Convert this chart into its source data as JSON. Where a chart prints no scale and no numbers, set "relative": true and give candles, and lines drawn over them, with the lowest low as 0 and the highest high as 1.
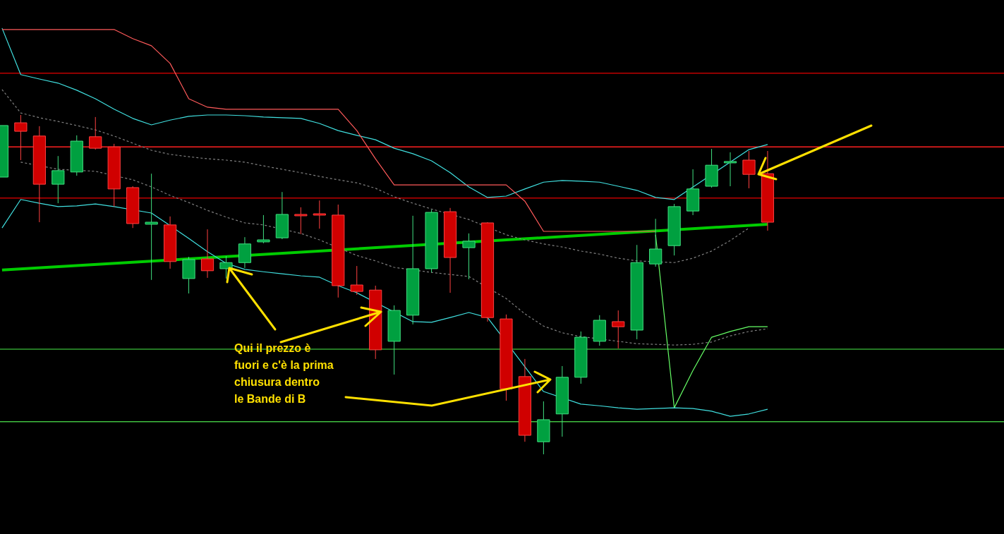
{
  "chart_data": {
    "type": "candlestick",
    "relative": true,
    "categories": [
      null,
      null,
      null,
      null,
      null,
      null,
      null,
      null,
      null,
      null,
      null,
      null,
      null,
      null,
      null,
      null,
      null,
      null,
      null,
      null,
      null,
      null,
      null,
      null,
      null,
      null,
      null,
      null,
      null,
      null,
      null,
      null,
      null,
      null,
      null,
      null,
      null,
      null,
      null,
      null,
      null,
      null
    ],
    "ohlc": [
      [
        0.817,
        0.969,
        0.817,
        0.969
      ],
      [
        0.977,
        1.0,
        0.867,
        0.952
      ],
      [
        0.938,
        0.967,
        0.684,
        0.796
      ],
      [
        0.796,
        0.879,
        0.74,
        0.836
      ],
      [
        0.832,
        0.94,
        0.821,
        0.923
      ],
      [
        0.936,
        0.994,
        0.898,
        0.902
      ],
      [
        0.906,
        0.915,
        0.73,
        0.782
      ],
      [
        0.786,
        0.79,
        0.667,
        0.68
      ],
      [
        0.678,
        0.827,
        0.514,
        0.684
      ],
      [
        0.676,
        0.701,
        0.547,
        0.568
      ],
      [
        0.518,
        0.582,
        0.474,
        0.574
      ],
      [
        0.576,
        0.663,
        0.52,
        0.541
      ],
      [
        0.547,
        0.584,
        0.518,
        0.565
      ],
      [
        0.565,
        0.64,
        0.549,
        0.62
      ],
      [
        0.626,
        0.705,
        0.622,
        0.632
      ],
      [
        0.638,
        0.773,
        0.634,
        0.707
      ],
      [
        0.707,
        0.728,
        0.649,
        0.705
      ],
      [
        0.709,
        0.748,
        0.665,
        0.705
      ],
      [
        0.705,
        0.736,
        0.462,
        0.497
      ],
      [
        0.499,
        0.555,
        0.47,
        0.48
      ],
      [
        0.484,
        0.497,
        0.281,
        0.308
      ],
      [
        0.333,
        0.439,
        0.235,
        0.424
      ],
      [
        0.41,
        0.703,
        0.383,
        0.547
      ],
      [
        0.547,
        0.721,
        0.536,
        0.713
      ],
      [
        0.715,
        0.726,
        0.476,
        0.58
      ],
      [
        0.609,
        0.651,
        0.516,
        0.628
      ],
      [
        0.682,
        0.684,
        0.391,
        0.403
      ],
      [
        0.399,
        0.412,
        0.158,
        0.193
      ],
      [
        0.229,
        0.281,
        0.037,
        0.056
      ],
      [
        0.037,
        0.156,
        0.0,
        0.102
      ],
      [
        0.119,
        0.26,
        0.052,
        0.227
      ],
      [
        0.227,
        0.362,
        0.208,
        0.345
      ],
      [
        0.333,
        0.41,
        0.32,
        0.395
      ],
      [
        0.391,
        0.424,
        0.312,
        0.376
      ],
      [
        0.366,
        0.617,
        0.339,
        0.565
      ],
      [
        0.561,
        0.694,
        0.553,
        0.605
      ],
      [
        0.615,
        0.738,
        0.586,
        0.73
      ],
      [
        0.717,
        0.84,
        0.705,
        0.782
      ],
      [
        0.79,
        0.9,
        0.786,
        0.852
      ],
      [
        0.859,
        0.89,
        0.79,
        0.863
      ],
      [
        0.867,
        0.894,
        0.784,
        0.825
      ],
      [
        0.827,
        0.894,
        0.659,
        0.684
      ]
    ],
    "series": [
      {
        "type": "line",
        "color": "#ff5a5a",
        "values": [
          1.252,
          1.252,
          1.252,
          1.252,
          1.252,
          1.252,
          1.252,
          1.225,
          1.204,
          1.152,
          1.048,
          1.023,
          1.017,
          1.017,
          1.017,
          1.017,
          1.017,
          1.017,
          1.017,
          0.954,
          0.871,
          0.794,
          0.794,
          0.794,
          0.794,
          0.794,
          0.794,
          0.794,
          0.746,
          0.657,
          0.657,
          0.657,
          0.657,
          0.657,
          0.657,
          0.657,
          null,
          null,
          null,
          null,
          null,
          null
        ]
      },
      {
        "type": "line",
        "color": "#40e0e0",
        "values": [
          1.256,
          1.119,
          1.106,
          1.094,
          1.073,
          1.048,
          1.017,
          0.99,
          0.971,
          0.985,
          0.996,
          1.0,
          1.0,
          0.998,
          0.994,
          0.992,
          0.99,
          0.975,
          0.954,
          0.94,
          0.927,
          0.902,
          0.886,
          0.865,
          0.83,
          0.788,
          0.757,
          0.761,
          0.782,
          0.802,
          0.807,
          0.805,
          0.802,
          0.79,
          0.778,
          0.757,
          0.751,
          null,
          null,
          0.861,
          0.898,
          0.913
        ]
      },
      {
        "type": "line",
        "color": "#808080",
        "line_style": "dashed",
        "values": [
          1.075,
          1.006,
          0.992,
          0.981,
          0.969,
          0.956,
          0.938,
          0.917,
          0.896,
          0.884,
          0.877,
          0.871,
          0.867,
          0.861,
          0.85,
          0.84,
          0.83,
          0.819,
          0.809,
          0.8,
          0.784,
          0.759,
          0.74,
          0.723,
          null,
          0.692,
          null,
          0.647,
          0.632,
          0.62,
          0.611,
          0.599,
          0.59,
          0.578,
          0.57,
          null,
          0.565,
          0.578,
          0.599,
          0.63,
          0.667,
          null
        ]
      },
      {
        "type": "line",
        "color": "#808080",
        "line_style": "dashed",
        "values": [
          null,
          0.861,
          null,
          0.84,
          null,
          0.834,
          null,
          0.809,
          0.788,
          0.763,
          0.742,
          0.719,
          0.699,
          0.682,
          0.676,
          null,
          0.651,
          0.632,
          null,
          0.586,
          0.57,
          0.551,
          null,
          0.536,
          0.53,
          0.524,
          null,
          0.459,
          0.414,
          0.378,
          0.358,
          0.347,
          null,
          0.333,
          0.326,
          0.324,
          0.322,
          0.324,
          0.331,
          0.349,
          0.362,
          0.37
        ]
      },
      {
        "type": "line",
        "color": "#40e0e0",
        "values": [
          0.667,
          0.751,
          0.74,
          0.73,
          0.732,
          0.738,
          0.73,
          null,
          0.711,
          0.674,
          0.636,
          0.597,
          0.563,
          0.545,
          0.538,
          0.532,
          0.526,
          0.522,
          0.497,
          0.476,
          null,
          null,
          0.391,
          0.389,
          0.403,
          0.418,
          0.403,
          null,
          0.258,
          0.185,
          null,
          0.148,
          0.143,
          0.137,
          0.133,
          0.135,
          0.137,
          0.135,
          0.127,
          0.112,
          0.119,
          0.133
        ]
      },
      {
        "type": "line",
        "color": "#66ff66",
        "values": [
          null,
          null,
          null,
          null,
          null,
          null,
          null,
          null,
          null,
          null,
          null,
          null,
          null,
          null,
          null,
          null,
          null,
          null,
          null,
          null,
          null,
          null,
          null,
          null,
          null,
          null,
          null,
          null,
          null,
          null,
          null,
          null,
          null,
          null,
          null,
          0.647,
          0.137,
          0.247,
          0.345,
          0.362,
          0.376,
          0.376
        ]
      },
      {
        "type": "line",
        "color": "#00cc00",
        "values": [
          0.543,
          null,
          null,
          null,
          null,
          null,
          null,
          null,
          null,
          null,
          null,
          null,
          null,
          null,
          null,
          null,
          null,
          null,
          null,
          null,
          null,
          null,
          null,
          null,
          null,
          null,
          null,
          null,
          null,
          null,
          null,
          null,
          null,
          null,
          null,
          null,
          null,
          null,
          null,
          null,
          null,
          0.678
        ]
      }
    ],
    "ref_lines": [
      {
        "axis": "y",
        "value": 1.123,
        "color": "#c00000"
      },
      {
        "axis": "y",
        "value": 0.906,
        "color": "#ff2020"
      },
      {
        "axis": "y",
        "value": 0.755,
        "color": "#c00000"
      },
      {
        "axis": "y",
        "value": 0.31,
        "color": "#30a030"
      },
      {
        "axis": "y",
        "value": 0.096,
        "color": "#40c040"
      }
    ],
    "annotations": [
      "Qui il prezzo è\nfuori e c'è la prima\nchiusura dentro\nle Bande di B"
    ]
  }
}
